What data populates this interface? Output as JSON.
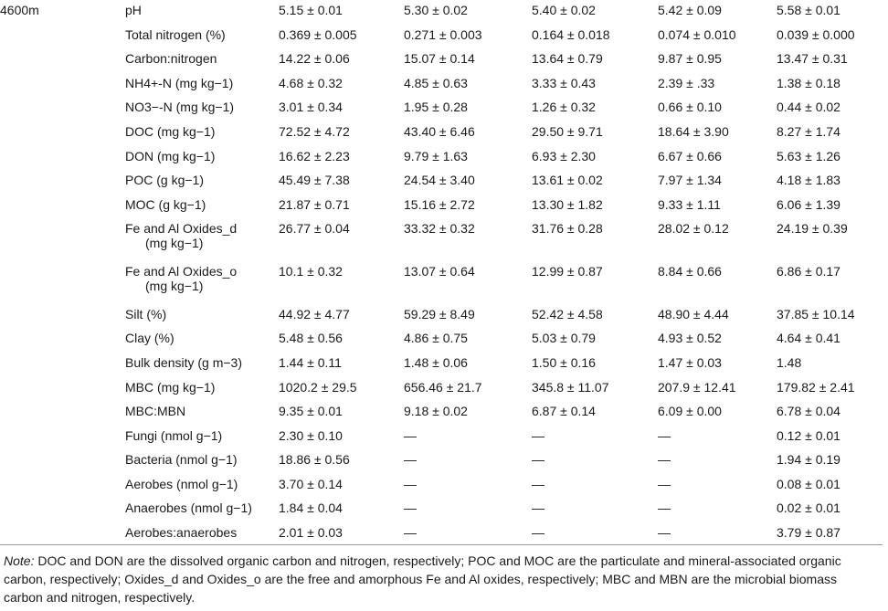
{
  "altitude": "4600m",
  "rows": [
    {
      "param": "pH",
      "v": [
        "5.15 ± 0.01",
        "5.30 ± 0.02",
        "5.40 ± 0.02",
        "5.42 ± 0.09",
        "5.58 ± 0.01"
      ]
    },
    {
      "param": "Total nitrogen (%)",
      "v": [
        "0.369 ± 0.005",
        "0.271 ± 0.003",
        "0.164 ± 0.018",
        "0.074 ± 0.010",
        "0.039 ± 0.000"
      ]
    },
    {
      "param": "Carbon:nitrogen",
      "v": [
        "14.22 ± 0.06",
        "15.07 ± 0.14",
        "13.64 ± 0.79",
        "9.87 ± 0.95",
        "13.47 ± 0.31"
      ]
    },
    {
      "param": "NH4+-N (mg kg−1)",
      "v": [
        "4.68 ± 0.32",
        "4.85 ± 0.63",
        "3.33 ± 0.43",
        "2.39 ± .33",
        "1.38 ± 0.18"
      ]
    },
    {
      "param": "NO3−-N (mg kg−1)",
      "v": [
        "3.01 ± 0.34",
        "1.95 ± 0.28",
        "1.26 ± 0.32",
        "0.66 ± 0.10",
        "0.44 ± 0.02"
      ]
    },
    {
      "param": "DOC (mg kg−1)",
      "v": [
        "72.52 ± 4.72",
        "43.40 ± 6.46",
        "29.50 ± 9.71",
        "18.64 ± 3.90",
        "8.27 ± 1.74"
      ]
    },
    {
      "param": "DON (mg kg−1)",
      "v": [
        "16.62 ± 2.23",
        "9.79 ± 1.63",
        "6.93 ± 2.30",
        "6.67 ± 0.66",
        "5.63 ± 1.26"
      ]
    },
    {
      "param": "POC (g kg−1)",
      "v": [
        "45.49 ± 7.38",
        "24.54 ± 3.40",
        "13.61 ± 0.02",
        "7.97 ± 1.34",
        "4.18 ± 1.83"
      ]
    },
    {
      "param": "MOC (g kg−1)",
      "v": [
        "21.87 ± 0.71",
        "15.16 ± 2.72",
        "13.30 ± 1.82",
        "9.33 ± 1.11",
        "6.06 ± 1.39"
      ]
    },
    {
      "param": "Fe and Al Oxides_d",
      "param2": "(mg kg−1)",
      "v": [
        "26.77 ± 0.04",
        "33.32 ± 0.32",
        "31.76 ± 0.28",
        "28.02 ± 0.12",
        "24.19 ± 0.39"
      ]
    },
    {
      "param": "Fe and Al Oxides_o",
      "param2": "(mg kg−1)",
      "v": [
        "10.1 ± 0.32",
        "13.07 ± 0.64",
        "12.99 ± 0.87",
        "8.84 ± 0.66",
        "6.86 ± 0.17"
      ]
    },
    {
      "param": "Silt (%)",
      "v": [
        "44.92 ± 4.77",
        "59.29 ± 8.49",
        "52.42 ± 4.58",
        "48.90 ± 4.44",
        "37.85 ± 10.14"
      ]
    },
    {
      "param": "Clay (%)",
      "v": [
        "5.48 ± 0.56",
        "4.86 ± 0.75",
        "5.03 ± 0.79",
        "4.93 ± 0.52",
        "4.64 ± 0.41"
      ]
    },
    {
      "param": "Bulk density (g m−3)",
      "v": [
        "1.44 ± 0.11",
        "1.48 ± 0.06",
        "1.50 ± 0.16",
        "1.47 ± 0.03",
        "1.48"
      ]
    },
    {
      "param": "MBC (mg kg−1)",
      "v": [
        "1020.2 ± 29.5",
        "656.46 ± 21.7",
        "345.8 ± 11.07",
        "207.9 ± 12.41",
        "179.82 ± 2.41"
      ]
    },
    {
      "param": "MBC:MBN",
      "v": [
        "9.35 ± 0.01",
        "9.18 ± 0.02",
        "6.87 ± 0.14",
        "6.09 ± 0.00",
        "6.78 ± 0.04"
      ]
    },
    {
      "param": "Fungi (nmol g−1)",
      "v": [
        "2.30 ± 0.10",
        "—",
        "—",
        "—",
        "0.12 ± 0.01"
      ]
    },
    {
      "param": "Bacteria (nmol g−1)",
      "v": [
        "18.86 ± 0.56",
        "—",
        "—",
        "—",
        "1.94 ± 0.19"
      ]
    },
    {
      "param": "Aerobes (nmol g−1)",
      "v": [
        "3.70 ± 0.14",
        "—",
        "—",
        "—",
        "0.08 ± 0.01"
      ]
    },
    {
      "param": "Anaerobes (nmol g−1)",
      "v": [
        "1.84 ± 0.04",
        "—",
        "—",
        "—",
        "0.02 ± 0.01"
      ]
    },
    {
      "param": "Aerobes:anaerobes",
      "v": [
        "2.01 ± 0.03",
        "—",
        "—",
        "—",
        "3.79 ± 0.87"
      ]
    }
  ],
  "note": {
    "label": "Note:",
    "text": "DOC and DON are the dissolved organic carbon and nitrogen, respectively; POC and MOC are the particulate and mineral-associated organic carbon, respectively; Oxides_d and Oxides_o are the free and amorphous Fe and Al oxides, respectively; MBC and MBN are the microbial biomass carbon and nitrogen, respectively."
  }
}
